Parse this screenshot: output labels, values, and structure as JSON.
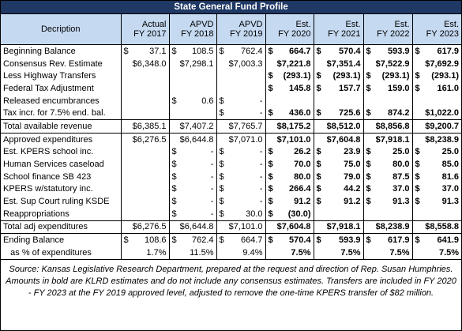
{
  "header": {
    "title": "State General Fund Profile",
    "columns": [
      "Decription",
      [
        "Actual",
        "FY 2017"
      ],
      [
        "APVD",
        "FY 2018"
      ],
      [
        "APVD",
        "FY 2019"
      ],
      [
        "Est.",
        "FY 2020"
      ],
      [
        "Est.",
        "FY 2021"
      ],
      [
        "Est.",
        "FY 2022"
      ],
      [
        "Est.",
        "FY 2023"
      ]
    ]
  },
  "table": {
    "rows": [
      [
        "Beginning Balance",
        [
          "$",
          "37.1"
        ],
        [
          "$",
          "108.5"
        ],
        [
          "$",
          "762.4"
        ],
        [
          "$",
          "664.7"
        ],
        [
          "$",
          "570.4"
        ],
        [
          "$",
          "593.9"
        ],
        [
          "$",
          "617.9"
        ]
      ],
      [
        "Consensus Rev. Estimate",
        "$6,348.0",
        "$7,298.1",
        "$7,003.3",
        "$7,221.8",
        "$7,351.4",
        "$7,522.9",
        "$7,692.9"
      ],
      [
        "Less Highway Transfers",
        null,
        null,
        null,
        [
          "$",
          "(293.1)"
        ],
        [
          "$",
          "(293.1)"
        ],
        [
          "$",
          "(293.1)"
        ],
        [
          "$",
          "(293.1)"
        ]
      ],
      [
        "Federal Tax Adjustment",
        null,
        null,
        null,
        [
          "$",
          "145.8"
        ],
        [
          "$",
          "157.7"
        ],
        [
          "$",
          "159.0"
        ],
        [
          "$",
          "161.0"
        ]
      ],
      [
        "Released encumbrances",
        null,
        [
          "$",
          "0.6"
        ],
        [
          "$",
          "-"
        ],
        null,
        null,
        null,
        null
      ],
      [
        "Tax incr. for 7.5% end. bal.",
        null,
        null,
        [
          "$",
          "-"
        ],
        [
          "$",
          "436.0"
        ],
        [
          "$",
          "725.6"
        ],
        [
          "$",
          "874.2"
        ],
        "$1,022.0"
      ],
      [
        "Total available revenue",
        "$6,385.1",
        "$7,407.2",
        "$7,765.7",
        "$8,175.2",
        "$8,512.0",
        "$8,856.8",
        "$9,200.7"
      ],
      [
        "Approved expenditures",
        "$6,276.5",
        "$6,644.8",
        "$7,071.0",
        "$7,101.0",
        "$7,604.8",
        "$7,918.1",
        "$8,238.9"
      ],
      [
        "Est. KPERS school inc.",
        null,
        [
          "$",
          "-"
        ],
        [
          "$",
          "-"
        ],
        [
          "$",
          "26.2"
        ],
        [
          "$",
          "23.9"
        ],
        [
          "$",
          "25.0"
        ],
        [
          "$",
          "25.0"
        ]
      ],
      [
        "Human Services caseload",
        null,
        [
          "$",
          "-"
        ],
        [
          "$",
          "-"
        ],
        [
          "$",
          "70.0"
        ],
        [
          "$",
          "75.0"
        ],
        [
          "$",
          "80.0"
        ],
        [
          "$",
          "85.0"
        ]
      ],
      [
        "School finance SB 423",
        null,
        [
          "$",
          "-"
        ],
        [
          "$",
          "-"
        ],
        [
          "$",
          "80.0"
        ],
        [
          "$",
          "79.0"
        ],
        [
          "$",
          "87.5"
        ],
        [
          "$",
          "81.6"
        ]
      ],
      [
        "KPERS w/statutory inc.",
        null,
        [
          "$",
          "-"
        ],
        [
          "$",
          "-"
        ],
        [
          "$",
          "266.4"
        ],
        [
          "$",
          "44.2"
        ],
        [
          "$",
          "37.0"
        ],
        [
          "$",
          "37.0"
        ]
      ],
      [
        "Est. Sup Court ruling KSDE",
        null,
        [
          "$",
          "-"
        ],
        [
          "$",
          "-"
        ],
        [
          "$",
          "91.2"
        ],
        [
          "$",
          "91.2"
        ],
        [
          "$",
          "91.3"
        ],
        [
          "$",
          "91.3"
        ]
      ],
      [
        "Reappropriations",
        null,
        [
          "$",
          "-"
        ],
        [
          "$",
          "30.0"
        ],
        [
          "$",
          "(30.0)"
        ],
        null,
        null,
        null
      ],
      [
        "Total adj expenditures",
        "$6,276.5",
        "$6,644.8",
        "$7,101.0",
        "$7,604.8",
        "$7,918.1",
        "$8,238.9",
        "$8,558.8"
      ],
      [
        "Ending Balance",
        [
          "$",
          "108.6"
        ],
        [
          "$",
          "762.4"
        ],
        [
          "$",
          "664.7"
        ],
        [
          "$",
          "570.4"
        ],
        [
          "$",
          "593.9"
        ],
        [
          "$",
          "617.9"
        ],
        [
          "$",
          "641.9"
        ]
      ],
      [
        "   as % of expenditures",
        "1.7%",
        "11.5%",
        "9.4%",
        "7.5%",
        "7.5%",
        "7.5%",
        "7.5%"
      ]
    ]
  },
  "footnote": "Source: Kansas Legislative Research Department, prepared at the request and direction of Rep. Susan Humphries. Amounts in bold are KLRD estimates and do not include any consensus estimates.  Transfers are included in FY 2020 - FY 2023 at the FY 2019 approved level, adjusted to remove the one-time KPERS transfer of $82 million."
}
